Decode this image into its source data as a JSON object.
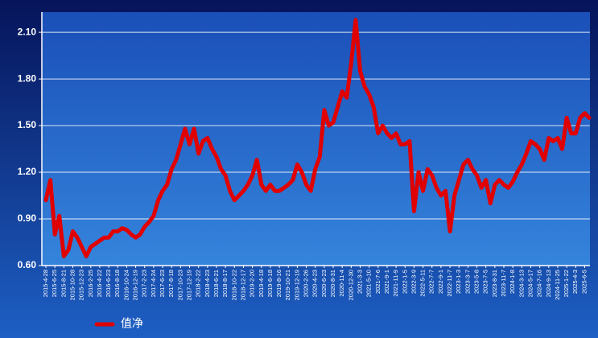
{
  "chart_data": {
    "type": "line",
    "categories": [
      "2015-4-28",
      null,
      "2015-6-25",
      null,
      "2015-8-21",
      null,
      "2015-10-28",
      null,
      "2015-12-23",
      null,
      "2016-2-25",
      null,
      "2016-4-22",
      null,
      "2016-6-23",
      null,
      "2016-8-18",
      null,
      "2016-10-24",
      null,
      "2016-12-19",
      null,
      "2017-2-23",
      null,
      "2017-4-24",
      null,
      "2017-6-23",
      null,
      "2017-8-18",
      null,
      "2017-10-23",
      null,
      "2017-12-19",
      null,
      "2018-2-22",
      null,
      "2018-4-23",
      null,
      "2018-6-21",
      null,
      "2018-8-17",
      null,
      "2018-10-22",
      null,
      "2018-12-17",
      null,
      "2019-2-20",
      null,
      "2019-4-18",
      null,
      "2019-6-18",
      null,
      "2019-8-16",
      null,
      "2019-10-21",
      null,
      "2019-12-19",
      null,
      "2020-2-26",
      null,
      "2020-4-23",
      null,
      "2020-6-23",
      null,
      "2020-8-31",
      null,
      "2020-11-4",
      null,
      "2020-12-30",
      null,
      "2021-3-3",
      null,
      "2021-5-10",
      null,
      "2021-7-6",
      null,
      "2021-9-1",
      null,
      "2021-11-9",
      null,
      "2022-1-5",
      null,
      "2022-3-9",
      null,
      "2022-5-11",
      null,
      "2022-7-7",
      null,
      "2022-9-1",
      null,
      "2022-11-7",
      null,
      "2023-1-3",
      null,
      "2023-3-7",
      null,
      "2023-5-8",
      null,
      "2023-7-5",
      null,
      "2023-8-31",
      null,
      "2023-11-7",
      null,
      "2024-1-8",
      null,
      "2024-3-13",
      null,
      "2024-5-17",
      null,
      "2024-7-16",
      null,
      "2024-9-13",
      null,
      "2024-11-25",
      null,
      "2025-1-22",
      null,
      "2025-4-3",
      null,
      "2025-6-5",
      null
    ],
    "series": [
      {
        "name": "值净",
        "color": "#e00000",
        "values": [
          1.02,
          1.15,
          0.8,
          0.92,
          0.66,
          0.7,
          0.82,
          0.78,
          0.72,
          0.66,
          0.72,
          0.74,
          0.76,
          0.78,
          0.78,
          0.82,
          0.82,
          0.84,
          0.83,
          0.8,
          0.78,
          0.8,
          0.85,
          0.88,
          0.92,
          1.02,
          1.08,
          1.12,
          1.22,
          1.28,
          1.38,
          1.48,
          1.38,
          1.48,
          1.32,
          1.4,
          1.42,
          1.35,
          1.3,
          1.22,
          1.18,
          1.08,
          1.02,
          1.05,
          1.08,
          1.12,
          1.18,
          1.28,
          1.12,
          1.08,
          1.12,
          1.08,
          1.08,
          1.1,
          1.12,
          1.15,
          1.25,
          1.2,
          1.12,
          1.08,
          1.22,
          1.3,
          1.6,
          1.5,
          1.52,
          1.62,
          1.72,
          1.68,
          1.9,
          2.18,
          1.85,
          1.75,
          1.7,
          1.62,
          1.45,
          1.5,
          1.45,
          1.42,
          1.45,
          1.38,
          1.38,
          1.4,
          0.95,
          1.2,
          1.08,
          1.22,
          1.18,
          1.1,
          1.05,
          1.08,
          0.82,
          1.05,
          1.15,
          1.25,
          1.28,
          1.22,
          1.18,
          1.1,
          1.15,
          1.0,
          1.12,
          1.15,
          1.12,
          1.1,
          1.14,
          1.2,
          1.25,
          1.32,
          1.4,
          1.38,
          1.35,
          1.28,
          1.42,
          1.4,
          1.42,
          1.35,
          1.55,
          1.45,
          1.45,
          1.55,
          1.58,
          1.55
        ]
      }
    ],
    "ylim": [
      0.6,
      2.23
    ],
    "yticks": [
      {
        "value": 0.6,
        "label": "0.60"
      },
      {
        "value": 0.9,
        "label": "0.90"
      },
      {
        "value": 1.2,
        "label": "1.20"
      },
      {
        "value": 1.5,
        "label": "1.50"
      },
      {
        "value": 1.8,
        "label": "1.80"
      },
      {
        "value": 2.1,
        "label": "2.10"
      }
    ],
    "grid": true,
    "legend": "bottom-left"
  }
}
